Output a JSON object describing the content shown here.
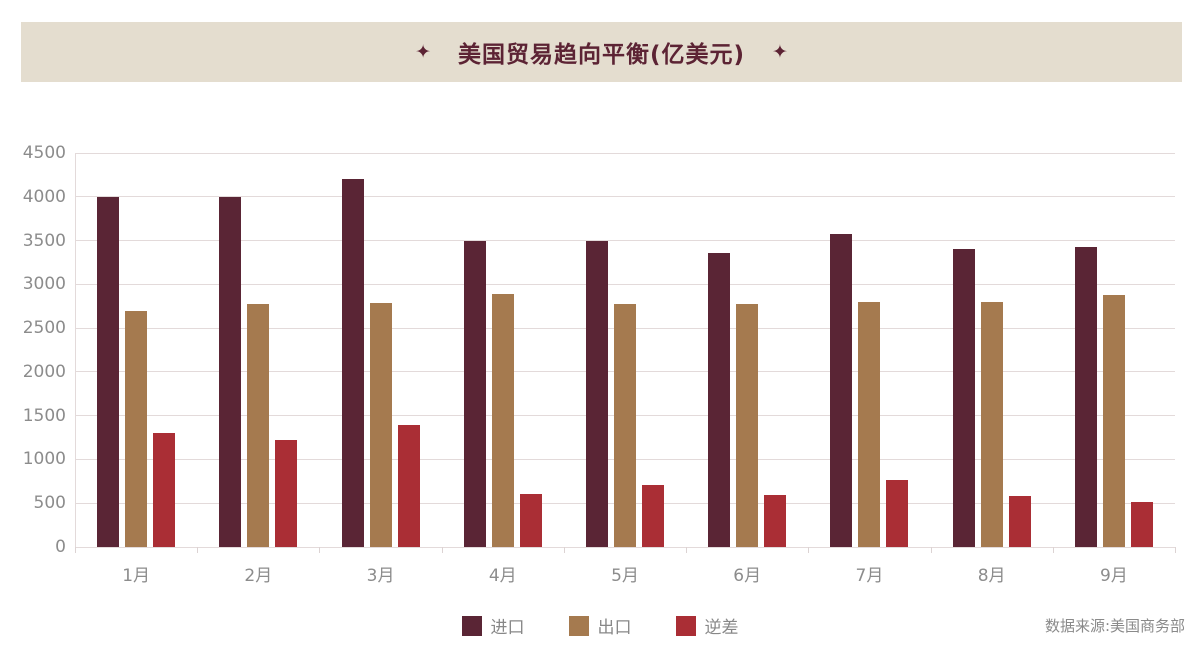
{
  "header": {
    "star": "✦",
    "background": "#E4DDCF",
    "title_color": "#5C2334"
  },
  "chart_data": {
    "type": "bar",
    "title": "美国贸易趋向平衡(亿美元)",
    "categories": [
      "1月",
      "2月",
      "3月",
      "4月",
      "5月",
      "6月",
      "7月",
      "8月",
      "9月"
    ],
    "series": [
      {
        "name": "进口",
        "color": "#5A2535",
        "values": [
          4000,
          4000,
          4200,
          3500,
          3500,
          3360,
          3580,
          3400,
          3430
        ]
      },
      {
        "name": "出口",
        "color": "#A57A4F",
        "values": [
          2690,
          2780,
          2790,
          2890,
          2780,
          2770,
          2800,
          2800,
          2880
        ]
      },
      {
        "name": "逆差",
        "color": "#AA2E35",
        "values": [
          1300,
          1220,
          1390,
          600,
          710,
          590,
          770,
          580,
          510
        ]
      }
    ],
    "ylim": [
      0,
      4500
    ],
    "yticks": [
      0,
      500,
      1000,
      1500,
      2000,
      2500,
      3000,
      3500,
      4000,
      4500
    ],
    "xlabel": "",
    "ylabel": "",
    "grid": true,
    "legend_position": "bottom"
  },
  "footer": {
    "source": "数据来源:美国商务部"
  }
}
